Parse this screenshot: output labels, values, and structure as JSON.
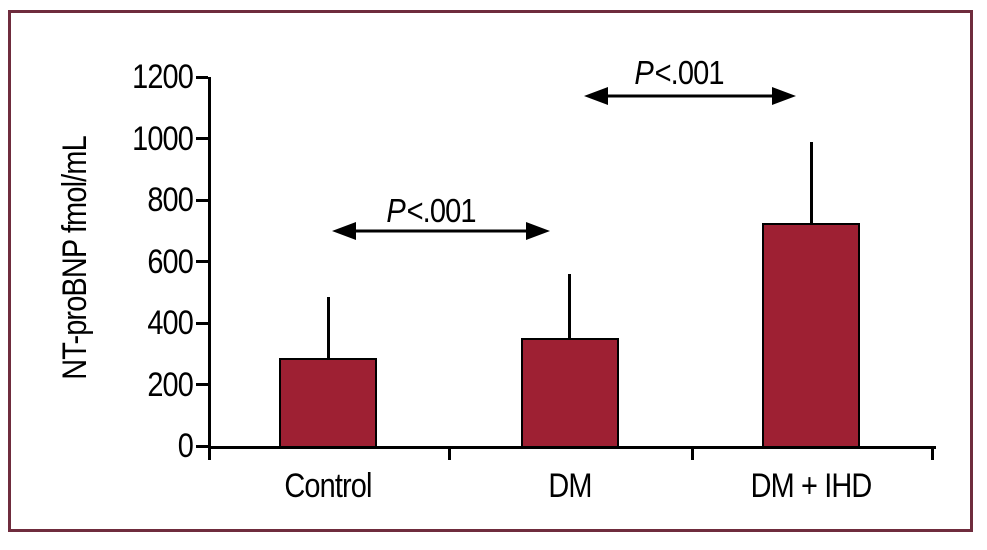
{
  "figure": {
    "border_color": "#6f2c3d",
    "background": "#ffffff"
  },
  "chart_data": {
    "type": "bar",
    "title": "",
    "xlabel": "",
    "ylabel": "NT-proBNP fmol/mL",
    "categories": [
      "Control",
      "DM",
      "DM + IHD"
    ],
    "values": [
      285,
      350,
      725
    ],
    "error_upper": [
      485,
      560,
      990
    ],
    "ylim": [
      0,
      1200
    ],
    "ytick_step": 200,
    "yticks": [
      0,
      200,
      400,
      600,
      800,
      1000,
      1200
    ],
    "grid": "off",
    "legend": "none",
    "bar_color": "#9e2033",
    "bar_border_color": "#000000",
    "axis_color": "#000000",
    "annotations": [
      {
        "label_italic": "P",
        "label_rest": "<.001",
        "between": [
          "Control",
          "DM"
        ]
      },
      {
        "label_italic": "P",
        "label_rest": "<.001",
        "between": [
          "DM",
          "DM + IHD"
        ]
      }
    ]
  }
}
